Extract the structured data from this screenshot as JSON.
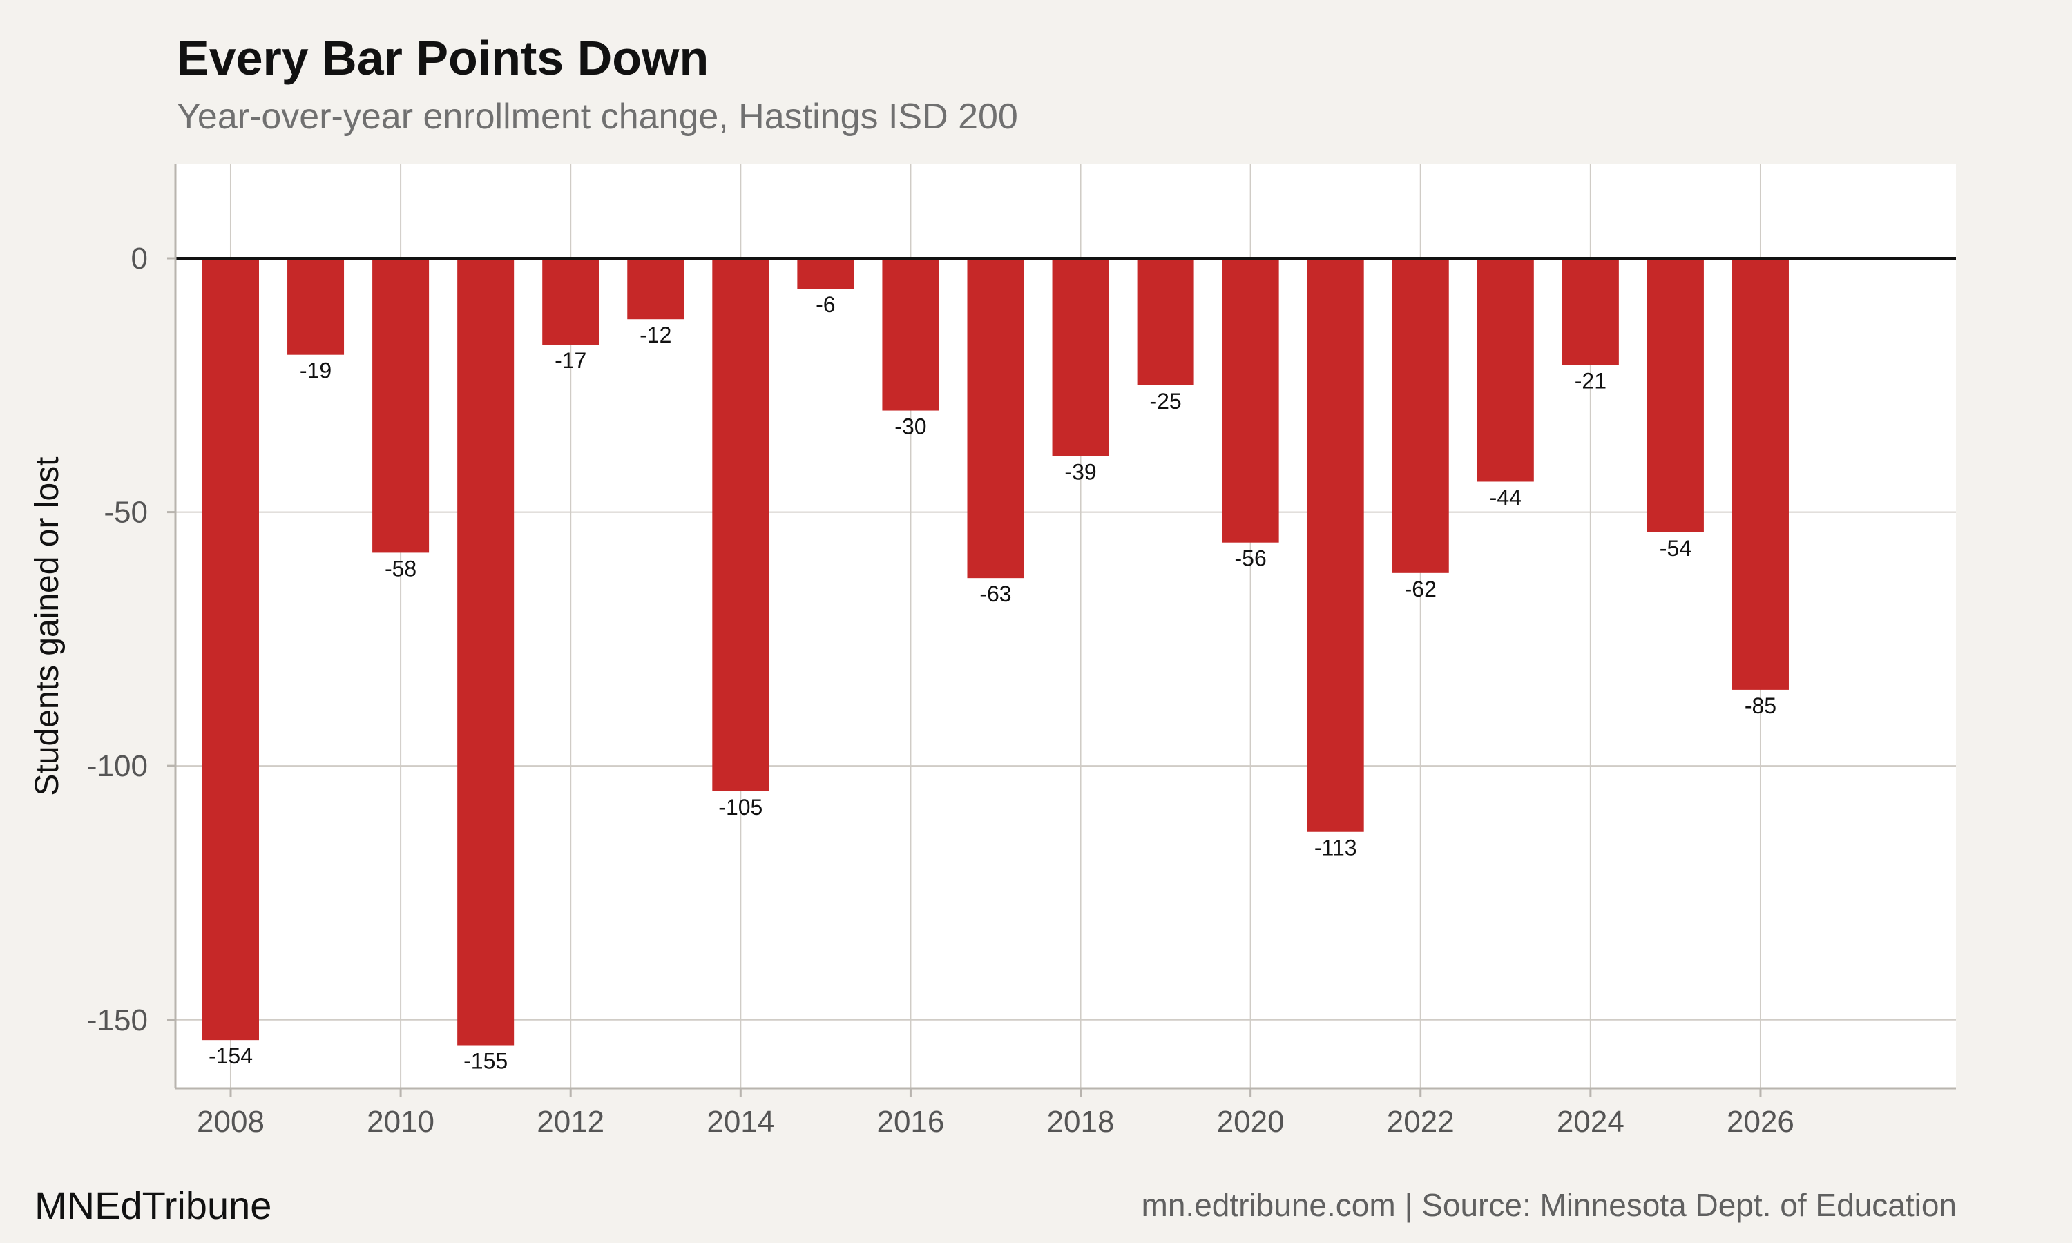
{
  "header": {
    "title": "Every Bar Points Down",
    "subtitle": "Year-over-year enrollment change, Hastings ISD 200"
  },
  "footer": {
    "brand": "MNEdTribune",
    "credit": "mn.edtribune.com | Source: Minnesota Dept. of Education"
  },
  "colors": {
    "bar": "#c62828",
    "grid": "#d0ccc6",
    "zero_line": "#111111",
    "panel": "#ffffff",
    "page_background": "#f4f2ee"
  },
  "chart_data": {
    "type": "bar",
    "title": "Every Bar Points Down",
    "subtitle": "Year-over-year enrollment change, Hastings ISD 200",
    "xlabel": "",
    "ylabel": "Students gained or lost",
    "x": [
      2008,
      2009,
      2010,
      2011,
      2012,
      2013,
      2014,
      2015,
      2016,
      2017,
      2018,
      2019,
      2020,
      2021,
      2022,
      2023,
      2024,
      2025,
      2026
    ],
    "values": [
      -154,
      -19,
      -58,
      -155,
      -17,
      -12,
      -105,
      -6,
      -30,
      -63,
      -39,
      -25,
      -56,
      -113,
      -62,
      -44,
      -21,
      -54,
      -85
    ],
    "data_labels": [
      "-154",
      "-19",
      "-58",
      "-155",
      "-17",
      "-12",
      "-105",
      "-6",
      "-30",
      "-63",
      "-39",
      "-25",
      "-56",
      "-113",
      "-62",
      "-44",
      "-21",
      "-54",
      "-85"
    ],
    "x_ticks": [
      2008,
      2010,
      2012,
      2014,
      2016,
      2018,
      2020,
      2022,
      2024,
      2026
    ],
    "x_tick_labels": [
      "2008",
      "2010",
      "2012",
      "2014",
      "2016",
      "2018",
      "2020",
      "2022",
      "2024",
      "2026"
    ],
    "y_ticks": [
      0,
      -50,
      -100,
      -150
    ],
    "y_tick_labels": [
      "0",
      "-50",
      "-100",
      "-150"
    ],
    "xlim": [
      2007.35,
      2028.3
    ],
    "ylim": [
      -163.5,
      18.5
    ],
    "grid": true,
    "legend": "none"
  }
}
